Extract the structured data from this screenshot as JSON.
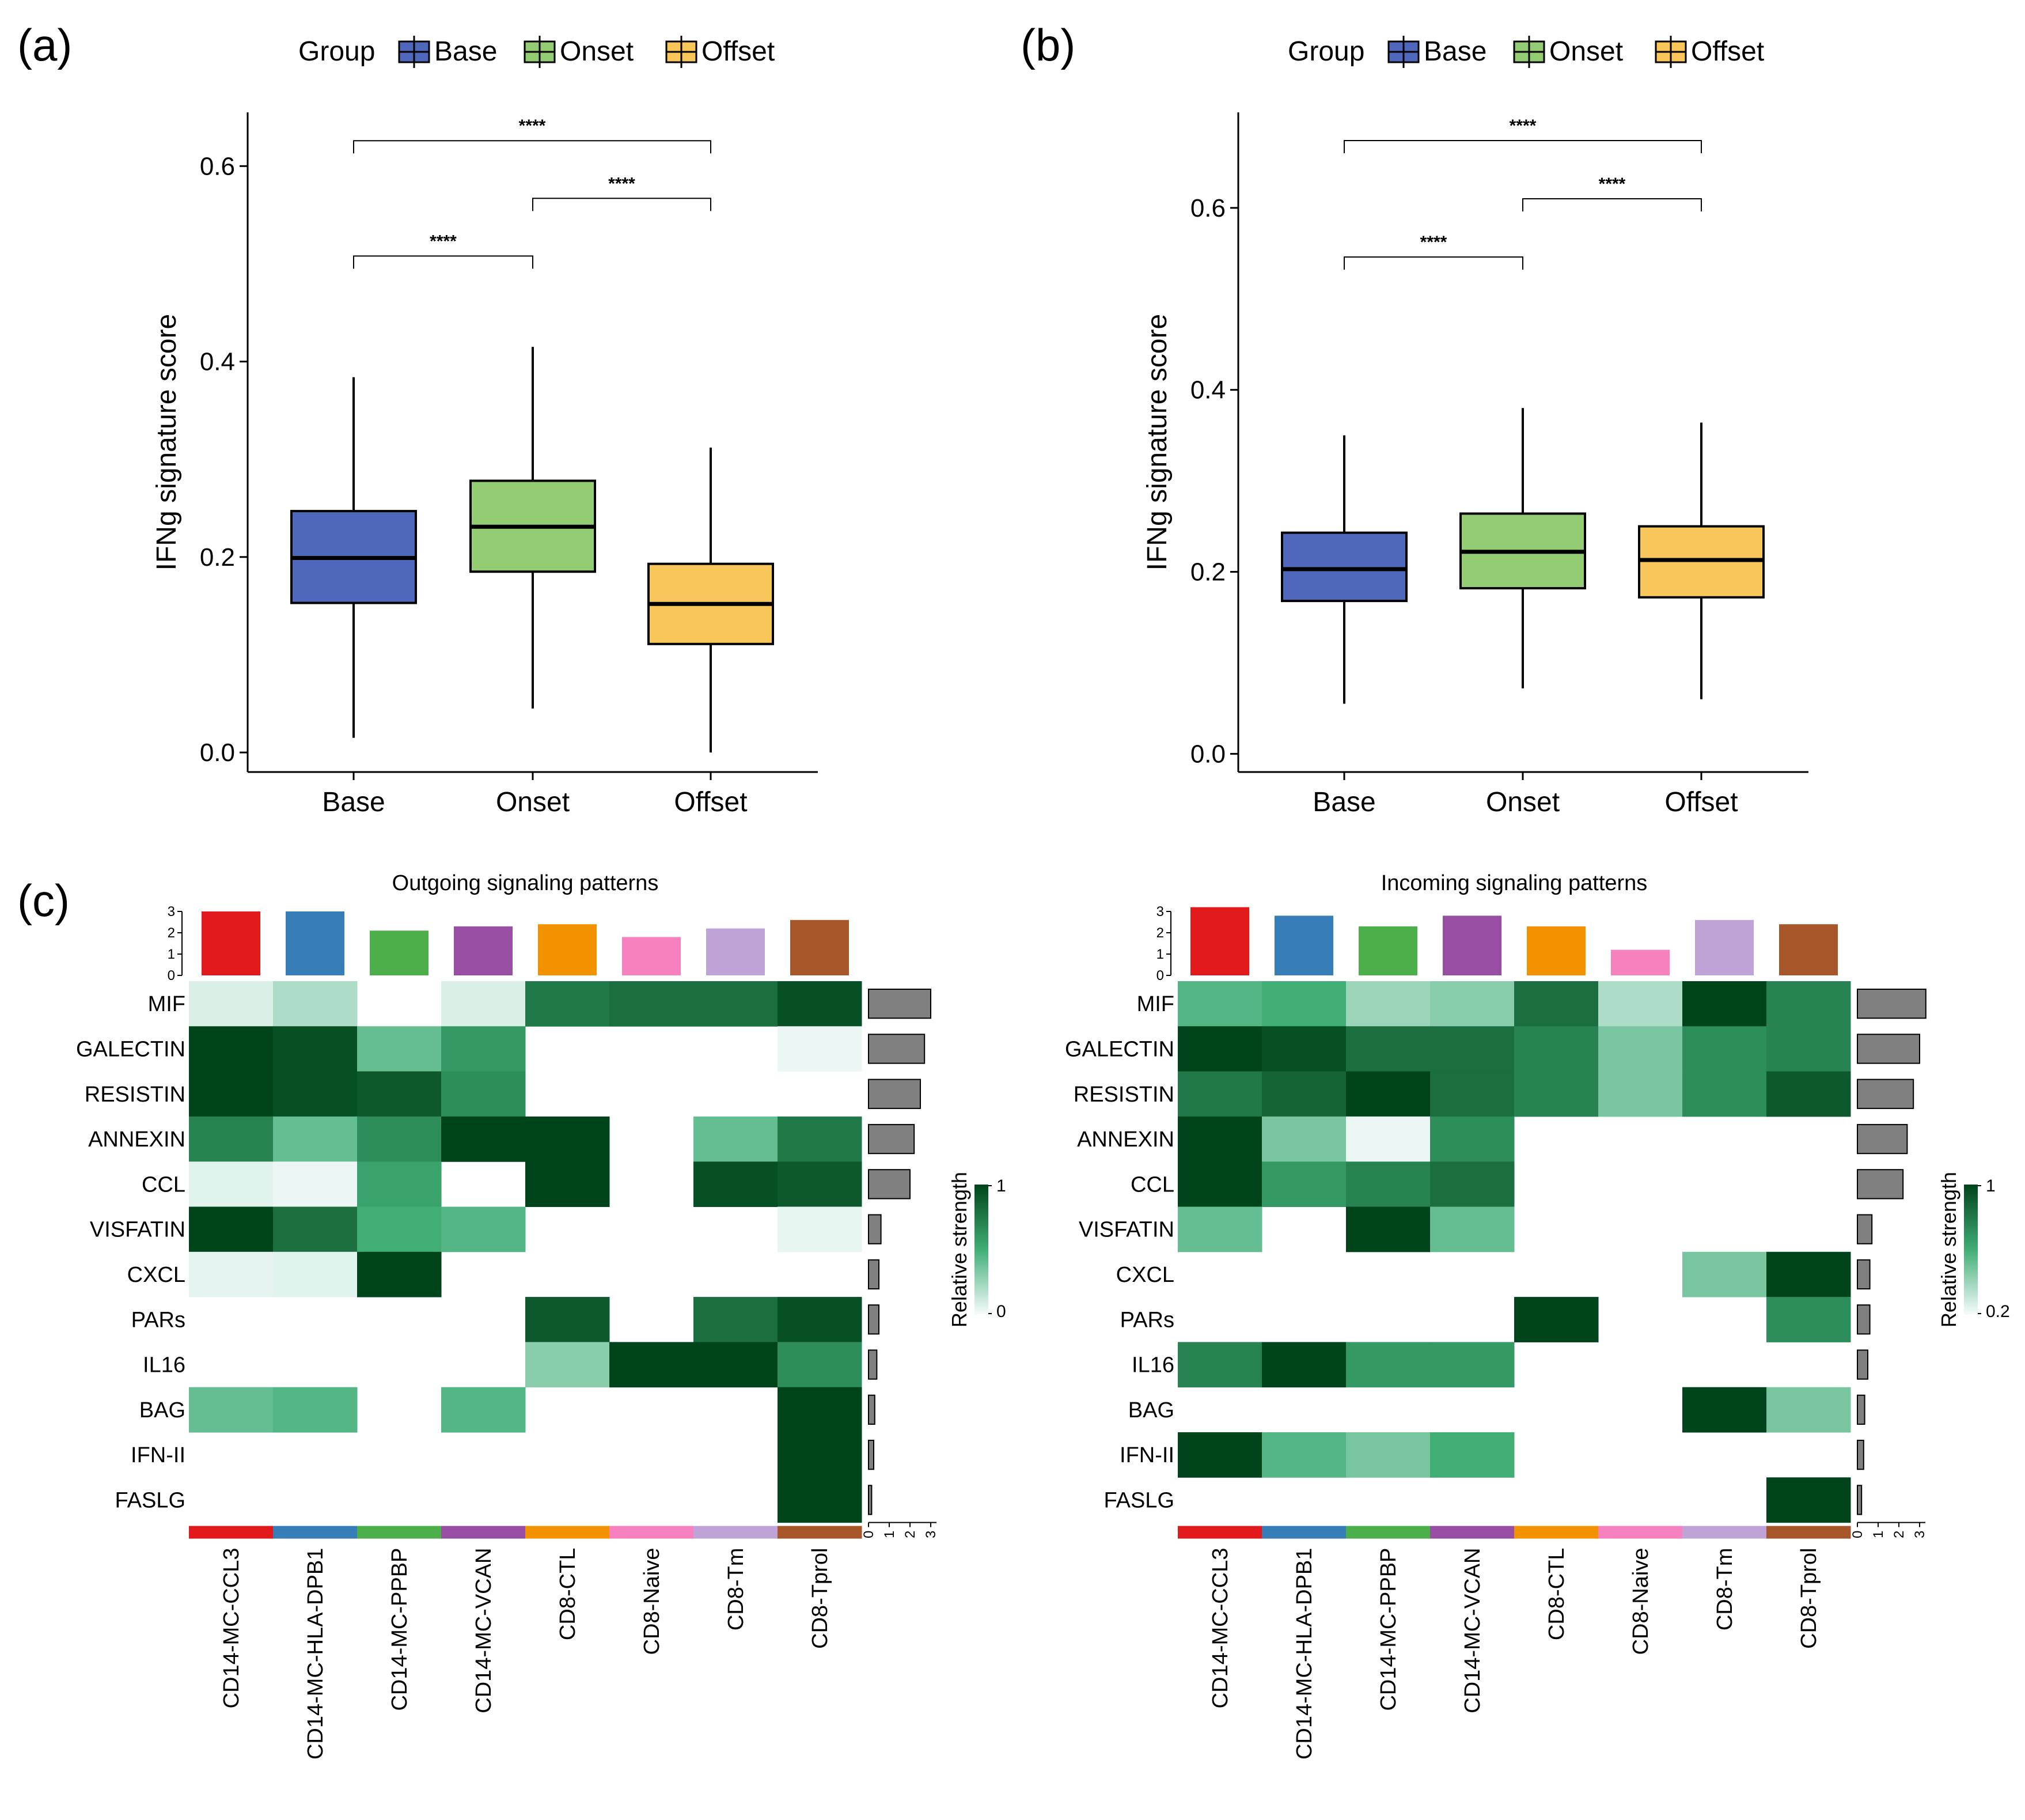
{
  "panel_labels": [
    "(a)",
    "(b)",
    "(c)"
  ],
  "legend": {
    "title": "Group",
    "items": [
      {
        "label": "Base",
        "color": "#4F68BC"
      },
      {
        "label": "Onset",
        "color": "#93CC72"
      },
      {
        "label": "Offset",
        "color": "#F8C659"
      }
    ]
  },
  "chart_data": [
    {
      "type": "box",
      "panel": "(a)",
      "ylabel": "IFNg signature score",
      "ylim": [
        -0.02,
        0.655
      ],
      "yticks": [
        0.0,
        0.2,
        0.4,
        0.6
      ],
      "ytick_labels": [
        "0.0",
        "0.2",
        "0.4",
        "0.6"
      ],
      "categories": [
        "Base",
        "Onset",
        "Offset"
      ],
      "colors": [
        "#4F68BC",
        "#93CC72",
        "#F8C659"
      ],
      "boxes": [
        {
          "whisker_low": 0.015,
          "q1": 0.153,
          "median": 0.199,
          "q3": 0.247,
          "whisker_high": 0.384
        },
        {
          "whisker_low": 0.045,
          "q1": 0.185,
          "median": 0.231,
          "q3": 0.278,
          "whisker_high": 0.415
        },
        {
          "whisker_low": 0.0,
          "q1": 0.111,
          "median": 0.152,
          "q3": 0.193,
          "whisker_high": 0.312
        }
      ],
      "comparisons": [
        {
          "from": 0,
          "to": 1,
          "y": 0.508,
          "label": "****"
        },
        {
          "from": 1,
          "to": 2,
          "y": 0.567,
          "label": "****"
        },
        {
          "from": 0,
          "to": 2,
          "y": 0.626,
          "label": "****"
        }
      ]
    },
    {
      "type": "box",
      "panel": "(b)",
      "ylabel": "IFNg signature score",
      "ylim": [
        -0.02,
        0.705
      ],
      "yticks": [
        0.0,
        0.2,
        0.4,
        0.6
      ],
      "ytick_labels": [
        "0.0",
        "0.2",
        "0.4",
        "0.6"
      ],
      "categories": [
        "Base",
        "Onset",
        "Offset"
      ],
      "colors": [
        "#4F68BC",
        "#93CC72",
        "#F8C659"
      ],
      "boxes": [
        {
          "whisker_low": 0.055,
          "q1": 0.168,
          "median": 0.203,
          "q3": 0.243,
          "whisker_high": 0.35
        },
        {
          "whisker_low": 0.072,
          "q1": 0.182,
          "median": 0.222,
          "q3": 0.264,
          "whisker_high": 0.38
        },
        {
          "whisker_low": 0.06,
          "q1": 0.172,
          "median": 0.213,
          "q3": 0.25,
          "whisker_high": 0.364
        }
      ],
      "comparisons": [
        {
          "from": 0,
          "to": 1,
          "y": 0.546,
          "label": "****"
        },
        {
          "from": 1,
          "to": 2,
          "y": 0.61,
          "label": "****"
        },
        {
          "from": 0,
          "to": 2,
          "y": 0.674,
          "label": "****"
        }
      ]
    },
    {
      "type": "heatmap",
      "panel": "(c)",
      "title": "Outgoing signaling patterns",
      "rows": [
        "MIF",
        "GALECTIN",
        "RESISTIN",
        "ANNEXIN",
        "CCL",
        "VISFATIN",
        "CXCL",
        "PARs",
        "IL16",
        "BAG",
        "IFN-II",
        "FASLG"
      ],
      "highlight_row": "IFN-II",
      "highlight_color": "#E31A1C",
      "columns": [
        "CD14-MC-CCL3",
        "CD14-MC-HLA-DPB1",
        "CD14-MC-PPBP",
        "CD14-MC-VCAN",
        "CD8-CTL",
        "CD8-Naive",
        "CD8-Tm",
        "CD8-Tprol"
      ],
      "column_colors": [
        "#E31A1C",
        "#377EB8",
        "#4DAF4A",
        "#984EA3",
        "#F39200",
        "#F781BF",
        "#BFA2D6",
        "#A65628"
      ],
      "column_totals": [
        3.0,
        3.0,
        2.1,
        2.3,
        2.4,
        1.8,
        2.2,
        2.6
      ],
      "row_totals": [
        3.0,
        2.7,
        2.5,
        2.2,
        2.0,
        0.6,
        0.5,
        0.5,
        0.4,
        0.3,
        0.25,
        0.15
      ],
      "top_axis_ticks": [
        "0",
        "1",
        "2",
        "3"
      ],
      "right_axis_ticks": [
        "0",
        "1",
        "2",
        "3"
      ],
      "colorbar": {
        "title": "Relative strength",
        "min_label": "0",
        "max_label": "1",
        "low_color": "#F7FCFD",
        "high_color": "#00441B"
      },
      "values": [
        [
          0.08,
          0.2,
          null,
          0.08,
          0.75,
          0.8,
          0.8,
          0.95
        ],
        [
          1.0,
          0.95,
          0.4,
          0.6,
          null,
          null,
          null,
          0.03
        ],
        [
          1.0,
          0.95,
          0.9,
          0.65,
          null,
          null,
          null,
          null
        ],
        [
          0.7,
          0.4,
          0.65,
          1.0,
          1.0,
          null,
          0.4,
          0.75
        ],
        [
          0.06,
          0.03,
          0.55,
          null,
          1.0,
          null,
          0.95,
          0.9
        ],
        [
          1.0,
          0.8,
          0.5,
          0.45,
          null,
          null,
          null,
          0.04
        ],
        [
          0.05,
          0.06,
          1.0,
          null,
          null,
          null,
          null,
          null
        ],
        [
          null,
          null,
          null,
          null,
          0.9,
          null,
          0.8,
          0.95
        ],
        [
          null,
          null,
          null,
          null,
          0.3,
          1.0,
          1.0,
          0.65
        ],
        [
          0.4,
          0.45,
          null,
          0.45,
          null,
          null,
          null,
          1.0
        ],
        [
          null,
          null,
          null,
          null,
          null,
          null,
          null,
          1.0
        ],
        [
          null,
          null,
          null,
          null,
          null,
          null,
          null,
          1.0
        ]
      ]
    },
    {
      "type": "heatmap",
      "panel": "(c)",
      "title": "Incoming signaling patterns",
      "rows": [
        "MIF",
        "GALECTIN",
        "RESISTIN",
        "ANNEXIN",
        "CCL",
        "VISFATIN",
        "CXCL",
        "PARs",
        "IL16",
        "BAG",
        "IFN-II",
        "FASLG"
      ],
      "highlight_row": "IFN-II",
      "highlight_color": "#E31A1C",
      "columns": [
        "CD14-MC-CCL3",
        "CD14-MC-HLA-DPB1",
        "CD14-MC-PPBP",
        "CD14-MC-VCAN",
        "CD8-CTL",
        "CD8-Naive",
        "CD8-Tm",
        "CD8-Tprol"
      ],
      "column_colors": [
        "#E31A1C",
        "#377EB8",
        "#4DAF4A",
        "#984EA3",
        "#F39200",
        "#F781BF",
        "#BFA2D6",
        "#A65628"
      ],
      "column_totals": [
        3.2,
        2.8,
        2.3,
        2.8,
        2.3,
        1.2,
        2.6,
        2.4
      ],
      "row_totals": [
        3.3,
        3.0,
        2.7,
        2.4,
        2.2,
        0.7,
        0.6,
        0.6,
        0.5,
        0.35,
        0.3,
        0.2
      ],
      "top_axis_ticks": [
        "0",
        "1",
        "2",
        "3"
      ],
      "right_axis_ticks": [
        "0",
        "1",
        "2",
        "3"
      ],
      "colorbar": {
        "title": "Relative strength",
        "min_label": "0.2",
        "max_label": "1",
        "low_color": "#F7FCFD",
        "high_color": "#00441B"
      },
      "values": [
        [
          0.45,
          0.5,
          0.25,
          0.3,
          0.8,
          0.2,
          1.0,
          0.7
        ],
        [
          1.0,
          0.95,
          0.8,
          0.8,
          0.7,
          0.35,
          0.65,
          0.7
        ],
        [
          0.75,
          0.85,
          1.0,
          0.8,
          0.7,
          0.35,
          0.65,
          0.9
        ],
        [
          1.0,
          0.35,
          0.03,
          0.65,
          null,
          null,
          null,
          null
        ],
        [
          1.0,
          0.6,
          0.7,
          0.8,
          null,
          null,
          null,
          null
        ],
        [
          0.4,
          null,
          1.0,
          0.4,
          null,
          null,
          null,
          null
        ],
        [
          null,
          null,
          null,
          null,
          null,
          null,
          0.35,
          1.0
        ],
        [
          null,
          null,
          null,
          null,
          1.0,
          null,
          null,
          0.65
        ],
        [
          0.7,
          1.0,
          0.6,
          0.6,
          null,
          null,
          null,
          null
        ],
        [
          null,
          null,
          null,
          null,
          null,
          null,
          1.0,
          0.35
        ],
        [
          1.0,
          0.45,
          0.35,
          0.5,
          null,
          null,
          null,
          null
        ],
        [
          null,
          null,
          null,
          null,
          null,
          null,
          null,
          1.0
        ]
      ]
    }
  ]
}
